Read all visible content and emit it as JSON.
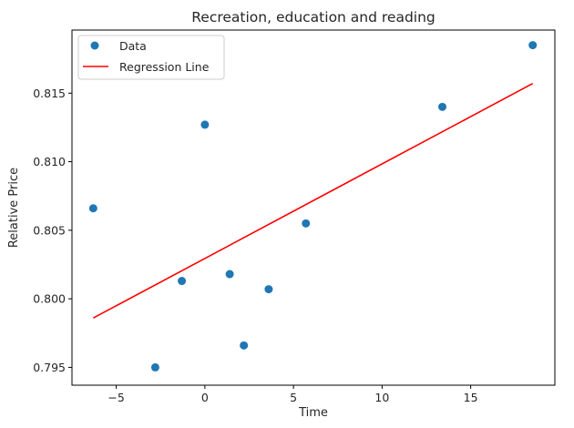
{
  "chart_data": {
    "type": "scatter",
    "title": "Recreation, education and reading",
    "xlabel": "Time",
    "ylabel": "Relative Price",
    "xlim": [
      -7.5,
      19.75
    ],
    "ylim": [
      0.7937,
      0.8196
    ],
    "xticks": [
      -5,
      0,
      5,
      10,
      15
    ],
    "xtick_labels": [
      "−5",
      "0",
      "5",
      "10",
      "15"
    ],
    "yticks": [
      0.795,
      0.8,
      0.805,
      0.81,
      0.815
    ],
    "ytick_labels": [
      "0.795",
      "0.800",
      "0.805",
      "0.810",
      "0.815"
    ],
    "grid": false,
    "legend_position": "top-left",
    "series": [
      {
        "name": "Data",
        "kind": "scatter",
        "color": "#1f77b4",
        "x": [
          -6.3,
          -2.8,
          -1.3,
          0.0,
          1.4,
          2.2,
          3.6,
          5.7,
          13.4,
          18.5
        ],
        "y": [
          0.8066,
          0.795,
          0.8013,
          0.8127,
          0.8018,
          0.7966,
          0.8007,
          0.8055,
          0.814,
          0.8185
        ]
      },
      {
        "name": "Regression Line",
        "kind": "line",
        "color": "#ff0000",
        "x": [
          -6.3,
          18.5
        ],
        "y": [
          0.7986,
          0.8157
        ]
      }
    ]
  }
}
